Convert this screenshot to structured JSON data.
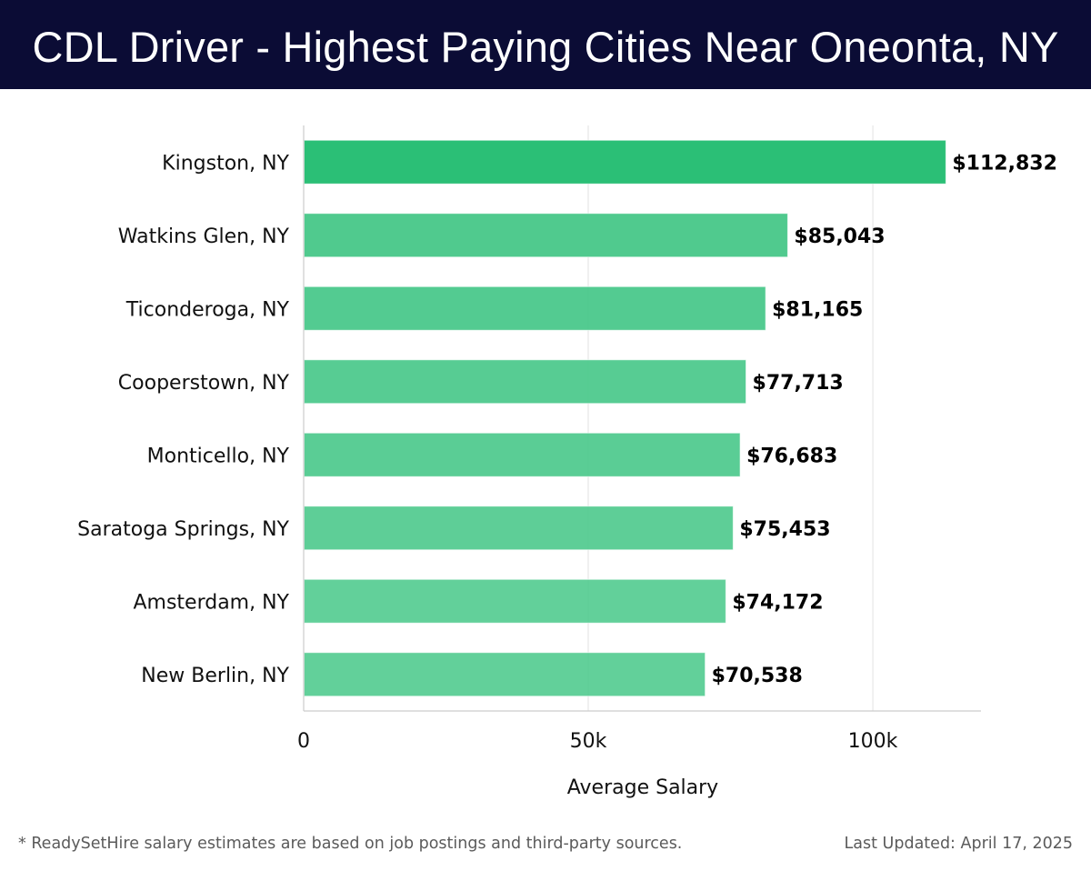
{
  "header": {
    "title": "CDL Driver - Highest Paying Cities Near Oneonta, NY"
  },
  "chart_data": {
    "type": "bar",
    "orientation": "horizontal",
    "title": "CDL Driver - Highest Paying Cities Near Oneonta, NY",
    "xlabel": "Average Salary",
    "ylabel": "",
    "xlim": [
      0,
      119000
    ],
    "x_ticks": [
      0,
      50000,
      100000
    ],
    "x_tick_labels": [
      "0",
      "50k",
      "100k"
    ],
    "grid": "vertical",
    "categories": [
      "Kingston, NY",
      "Watkins Glen, NY",
      "Ticonderoga, NY",
      "Cooperstown, NY",
      "Monticello, NY",
      "Saratoga Springs, NY",
      "Amsterdam, NY",
      "New Berlin, NY"
    ],
    "values": [
      112832,
      85043,
      81165,
      77713,
      76683,
      75453,
      74172,
      70538
    ],
    "value_labels": [
      "$112,832",
      "$85,043",
      "$81,165",
      "$77,713",
      "$76,683",
      "$75,453",
      "$74,172",
      "$70,538"
    ],
    "colors": {
      "highlight_bar": "#2bbf76",
      "bar": "#4cc98c",
      "grid": "#e6e6e6",
      "axis": "#cccccc",
      "label_text": "#000000"
    }
  },
  "footer": {
    "note": "* ReadySetHire salary estimates are based on job postings and third-party sources.",
    "updated": "Last Updated: April 17, 2025"
  }
}
